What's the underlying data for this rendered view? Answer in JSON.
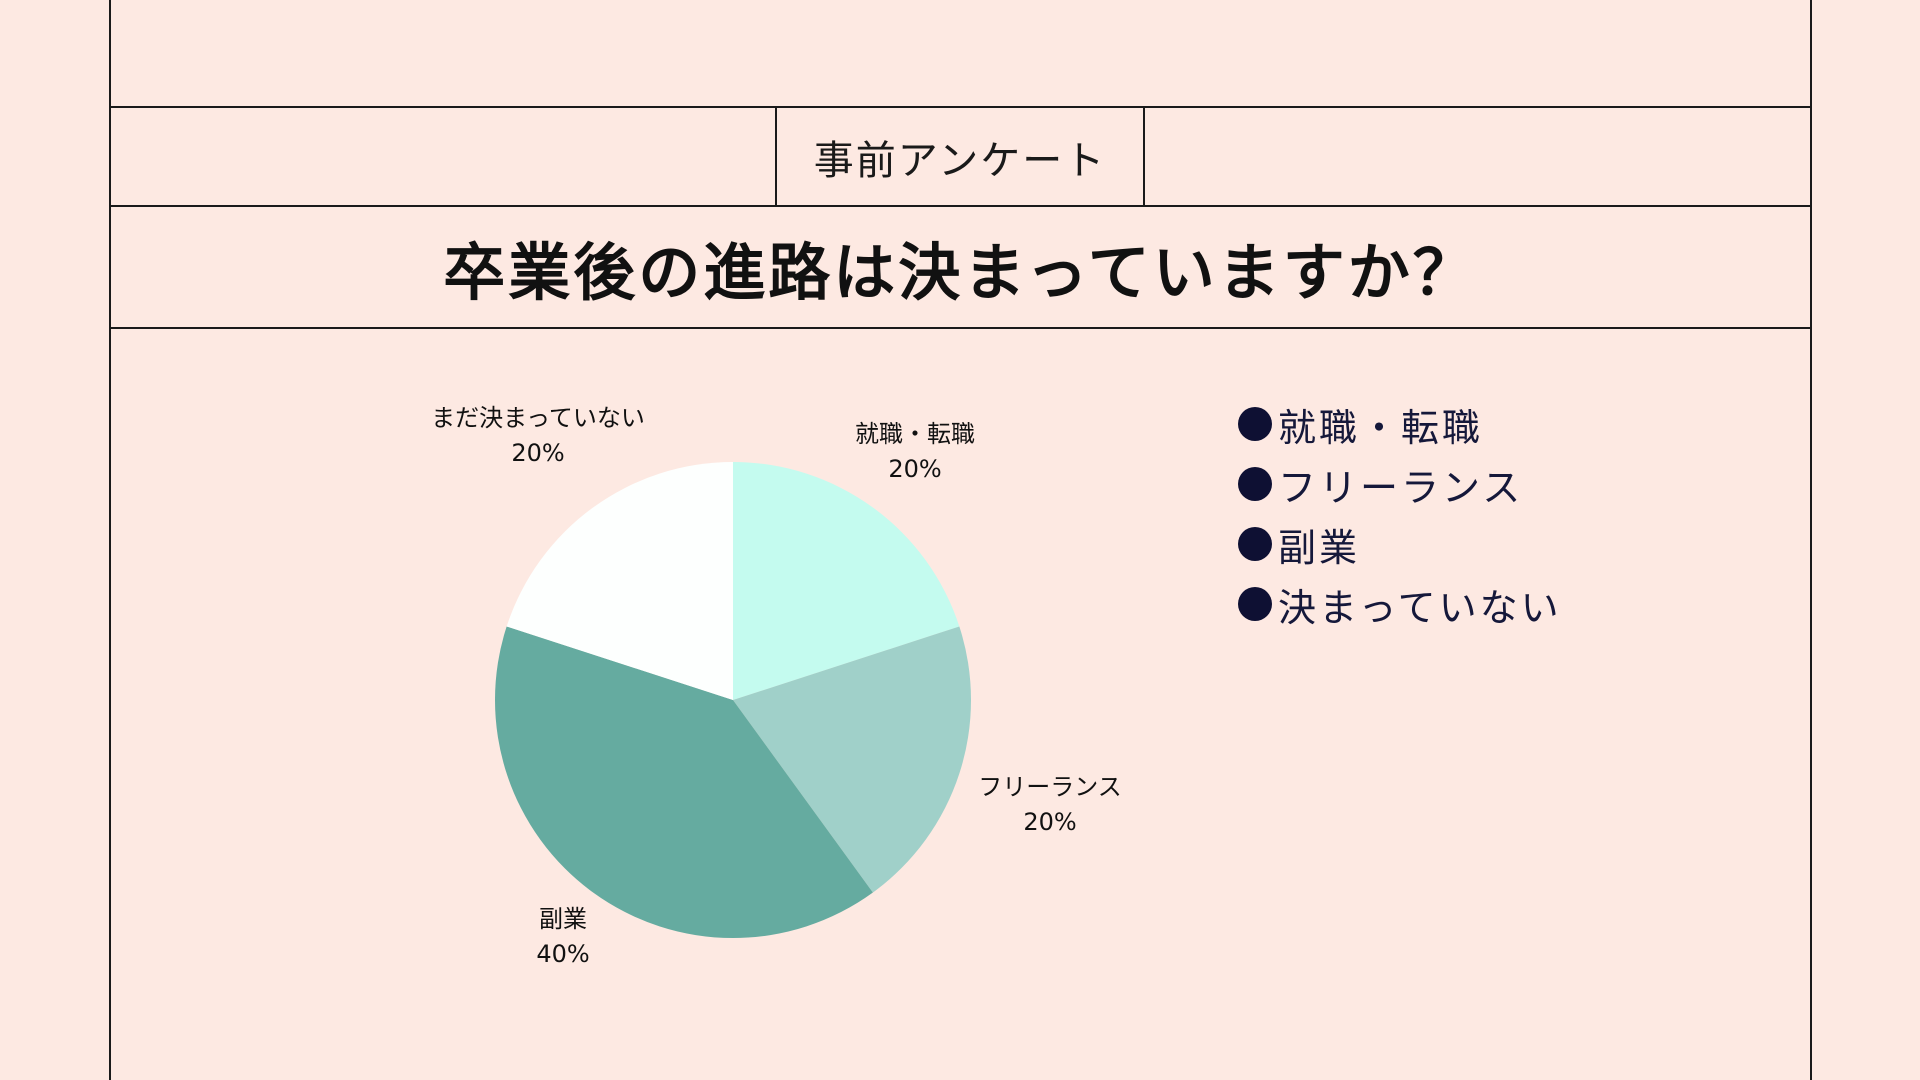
{
  "header": {
    "subtitle": "事前アンケート",
    "question": "卒業後の進路は決まっていますか？"
  },
  "legend": {
    "items": [
      "就職・転職",
      "フリーランス",
      "副業",
      "決まっていない"
    ]
  },
  "chart_data": {
    "type": "pie",
    "categories": [
      "就職・転職",
      "フリーランス",
      "副業",
      "まだ決まっていない"
    ],
    "values": [
      20,
      20,
      40,
      20
    ],
    "labels": [
      "20%",
      "20%",
      "40%",
      "20%"
    ],
    "colors": [
      "#c4fbef",
      "#a0d0c9",
      "#65aba0",
      "#fdfffe"
    ],
    "legend_position": "right"
  }
}
